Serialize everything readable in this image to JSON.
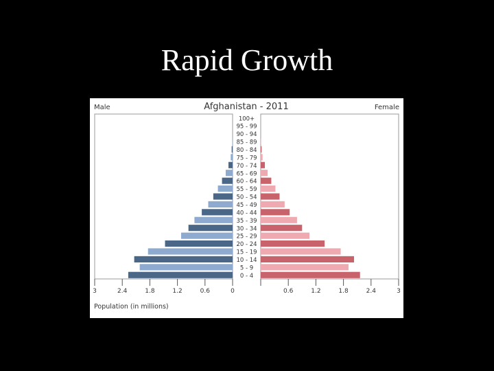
{
  "slide": {
    "title": "Rapid Growth"
  },
  "colors": {
    "male_dark": "#4a6788",
    "male_light": "#8eabcf",
    "female_dark": "#c8636c",
    "female_light": "#eeaab0"
  },
  "chart_data": {
    "type": "bar",
    "orientation": "horizontal",
    "layout": "population-pyramid",
    "title": "Afghanistan - 2011",
    "left_label": "Male",
    "right_label": "Female",
    "xlabel": "Population (in millions)",
    "xlim": [
      -3,
      3
    ],
    "x_ticks": [
      -3,
      -2.4,
      -1.8,
      -1.2,
      -0.6,
      0,
      0.6,
      1.2,
      1.8,
      2.4,
      3
    ],
    "x_tick_labels": [
      "3",
      "2.4",
      "1.8",
      "1.2",
      "0.6",
      "0",
      "0.6",
      "1.2",
      "1.8",
      "2.4",
      "3"
    ],
    "categories": [
      "100+",
      "95 - 99",
      "90 - 94",
      "85 - 89",
      "80 - 84",
      "75 - 79",
      "70 - 74",
      "65 - 69",
      "60 - 64",
      "55 - 59",
      "50 - 54",
      "45 - 49",
      "40 - 44",
      "35 - 39",
      "30 - 34",
      "25 - 29",
      "20 - 24",
      "15 - 19",
      "10 - 14",
      "5 - 9",
      "0 - 4"
    ],
    "series": [
      {
        "name": "Male",
        "values": [
          0.0,
          0.0,
          0.0,
          0.005,
          0.02,
          0.04,
          0.09,
          0.15,
          0.23,
          0.32,
          0.42,
          0.53,
          0.67,
          0.83,
          0.96,
          1.12,
          1.47,
          1.84,
          2.14,
          2.02,
          2.27
        ]
      },
      {
        "name": "Female",
        "values": [
          0.0,
          0.0,
          0.0,
          0.005,
          0.02,
          0.04,
          0.09,
          0.15,
          0.23,
          0.32,
          0.41,
          0.52,
          0.63,
          0.79,
          0.9,
          1.06,
          1.39,
          1.74,
          2.03,
          1.91,
          2.16
        ]
      }
    ],
    "grid": false
  }
}
